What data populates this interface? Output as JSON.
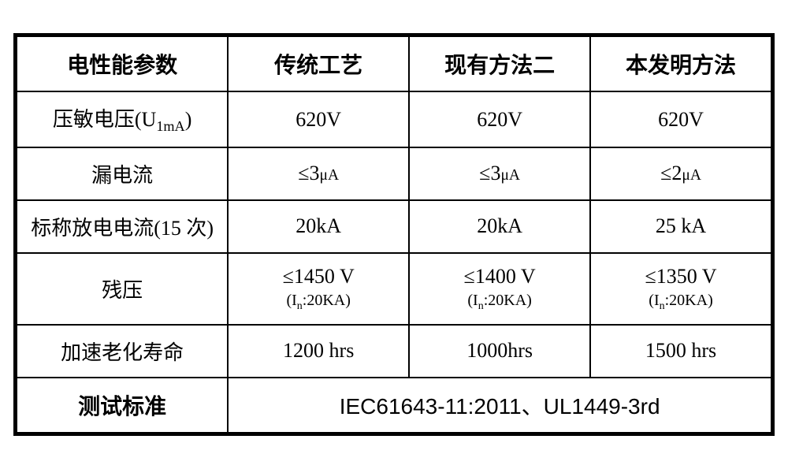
{
  "table": {
    "border_color": "#000000",
    "background_color": "#ffffff",
    "text_color": "#000000",
    "header_fontsize": 28,
    "cell_fontsize": 26,
    "subnote_fontsize": 20,
    "columns": [
      {
        "key": "param",
        "label": "电性能参数",
        "width_pct": 28
      },
      {
        "key": "traditional",
        "label": "传统工艺",
        "width_pct": 24
      },
      {
        "key": "method2",
        "label": "现有方法二",
        "width_pct": 24
      },
      {
        "key": "invention",
        "label": "本发明方法",
        "width_pct": 24
      }
    ],
    "rows": [
      {
        "param_html": "压敏电压(U<sub>1mA</sub>)",
        "param": "压敏电压(U1mA)",
        "traditional": {
          "main": "620V"
        },
        "method2": {
          "main": "620V"
        },
        "invention": {
          "main": "620V"
        }
      },
      {
        "param": "漏电流",
        "traditional": {
          "main": "≤3",
          "unit": "μA"
        },
        "method2": {
          "main": "≤3",
          "unit": "μA"
        },
        "invention": {
          "main": "≤2",
          "unit": "μA"
        }
      },
      {
        "param": "标称放电电流(15 次)",
        "traditional": {
          "main": "20kA"
        },
        "method2": {
          "main": "20kA"
        },
        "invention": {
          "main": "25 kA"
        }
      },
      {
        "param": "残压",
        "traditional": {
          "main": "≤1450 V",
          "sub": "(In:20KA)",
          "sub_has_subscript": true
        },
        "method2": {
          "main": "≤1400 V",
          "sub": "(In:20KA)",
          "sub_has_subscript": true
        },
        "invention": {
          "main": "≤1350 V",
          "sub": "(In:20KA)",
          "sub_has_subscript": true
        }
      },
      {
        "param": "加速老化寿命",
        "traditional": {
          "main": "1200 hrs"
        },
        "method2": {
          "main": "1000hrs"
        },
        "invention": {
          "main": "1500 hrs"
        }
      }
    ],
    "footer": {
      "label": "测试标准",
      "value": "IEC61643-11:2011、UL1449-3rd",
      "label_colspan": 1,
      "value_colspan": 3
    }
  }
}
